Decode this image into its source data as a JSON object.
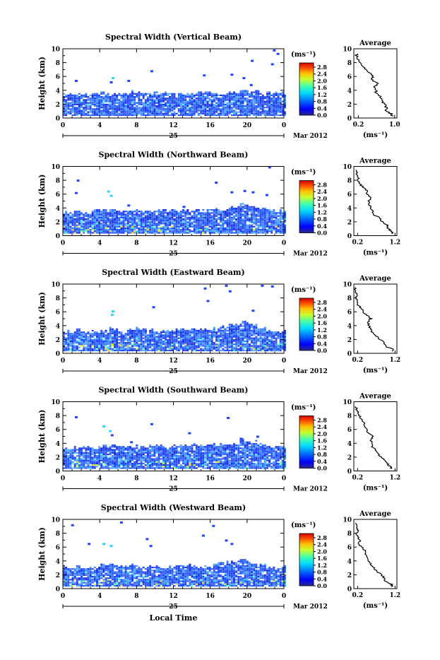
{
  "chart_data": [
    {
      "type": "heatmap",
      "title": "Spectral Width (Vertical Beam)",
      "ylabel": "Height (km)",
      "yticks": [
        "0",
        "2",
        "4",
        "6",
        "8",
        "10"
      ],
      "ylim": [
        0,
        10
      ],
      "xticks": [
        "0",
        "4",
        "8",
        "12",
        "16",
        "20",
        "0"
      ],
      "xlim": [
        0,
        24
      ],
      "day_label": "25",
      "date_label": "Mar 2012",
      "colorbar": {
        "unit": "(ms⁻¹)",
        "ticks": [
          "0.0",
          "0.4",
          "0.8",
          "1.2",
          "1.6",
          "2.0",
          "2.4",
          "2.8"
        ],
        "range": [
          0,
          2.8
        ]
      },
      "cloud": {
        "top_km": 3.5,
        "base_km": 0.3,
        "tops": [
          3.4,
          3.5,
          3.3,
          3.5,
          3.6,
          3.4,
          3.5,
          3.6,
          3.5,
          3.4,
          3.5,
          3.5,
          3.4,
          3.6,
          3.5,
          3.5,
          3.6,
          3.4,
          3.7,
          3.9,
          3.8,
          3.6,
          3.5,
          3.5
        ],
        "wide_near_ground": false,
        "seed": 11
      },
      "speckles": [
        [
          1.3,
          5.2
        ],
        [
          5.1,
          5.0
        ],
        [
          5.3,
          5.6
        ],
        [
          7.0,
          5.2
        ],
        [
          9.5,
          6.6
        ],
        [
          15.2,
          6.0
        ],
        [
          18.2,
          6.1
        ],
        [
          19.5,
          5.6
        ],
        [
          20.3,
          4.6
        ],
        [
          20.4,
          8.1
        ],
        [
          22.6,
          7.6
        ],
        [
          22.8,
          9.6
        ],
        [
          23.2,
          9.1
        ]
      ],
      "average": {
        "title": "Average",
        "xlabel": "(ms⁻¹)",
        "xticks": [
          "0.2",
          "1.0"
        ],
        "xlim": [
          0.1,
          1.05
        ],
        "heights": [
          0.3,
          0.6,
          1,
          1.5,
          2,
          2.5,
          3,
          3.5,
          4,
          4.5,
          5,
          5.5,
          6,
          6.5,
          7,
          7.5,
          8,
          8.5,
          9,
          9.3
        ],
        "values": [
          0.95,
          0.93,
          0.8,
          0.82,
          0.77,
          0.72,
          0.7,
          0.6,
          0.58,
          0.55,
          0.65,
          0.5,
          0.52,
          0.45,
          0.35,
          0.3,
          0.25,
          0.2,
          0.15,
          0.18
        ]
      }
    },
    {
      "type": "heatmap",
      "title": "Spectral Width (Northward Beam)",
      "ylabel": "Height (km)",
      "yticks": [
        "0",
        "2",
        "4",
        "6",
        "8",
        "10"
      ],
      "ylim": [
        0,
        10
      ],
      "xticks": [
        "0",
        "4",
        "8",
        "12",
        "16",
        "20",
        "0"
      ],
      "xlim": [
        0,
        24
      ],
      "day_label": "25",
      "date_label": "Mar 2012",
      "colorbar": {
        "unit": "(ms⁻¹)",
        "ticks": [
          "0.0",
          "0.4",
          "0.8",
          "1.2",
          "1.6",
          "2.0",
          "2.4",
          "2.8"
        ],
        "range": [
          0,
          2.8
        ]
      },
      "cloud": {
        "top_km": 3.5,
        "base_km": 0.3,
        "tops": [
          3.2,
          3.4,
          3.2,
          3.6,
          3.5,
          3.6,
          3.4,
          3.6,
          3.5,
          3.6,
          3.5,
          3.4,
          3.5,
          3.5,
          3.6,
          3.7,
          3.8,
          3.7,
          4.0,
          4.3,
          4.2,
          3.9,
          3.6,
          3.5
        ],
        "wide_near_ground": true,
        "seed": 23
      },
      "speckles": [
        [
          1.3,
          6.0
        ],
        [
          1.5,
          7.8
        ],
        [
          4.8,
          6.2
        ],
        [
          5.1,
          5.6
        ],
        [
          7.0,
          4.2
        ],
        [
          13.0,
          4.0
        ],
        [
          16.5,
          7.5
        ],
        [
          18.2,
          6.1
        ],
        [
          19.6,
          6.3
        ],
        [
          20.5,
          6.1
        ],
        [
          22.0,
          5.7
        ],
        [
          22.3,
          9.7
        ]
      ],
      "average": {
        "title": "Average",
        "xlabel": "(ms⁻¹)",
        "xticks": [
          "0.2",
          "1.2"
        ],
        "xlim": [
          0.1,
          1.25
        ],
        "heights": [
          0.3,
          0.6,
          1,
          1.5,
          2,
          2.5,
          3,
          3.5,
          4,
          4.5,
          5,
          5.5,
          6,
          6.5,
          7,
          7.5,
          8,
          8.5,
          9,
          9.5
        ],
        "values": [
          1.15,
          1.1,
          1.02,
          1.0,
          0.85,
          0.8,
          0.65,
          0.6,
          0.55,
          0.52,
          0.48,
          0.58,
          0.46,
          0.45,
          0.35,
          0.25,
          0.22,
          0.2,
          0.18,
          0.15
        ]
      }
    },
    {
      "type": "heatmap",
      "title": "Spectral Width (Eastward Beam)",
      "ylabel": "Height (km)",
      "yticks": [
        "0",
        "2",
        "4",
        "6",
        "8",
        "10"
      ],
      "ylim": [
        0,
        10
      ],
      "xticks": [
        "0",
        "4",
        "8",
        "12",
        "16",
        "20",
        "0"
      ],
      "xlim": [
        0,
        24
      ],
      "day_label": "25",
      "date_label": "Mar 2012",
      "colorbar": {
        "unit": "(ms⁻¹)",
        "ticks": [
          "0.0",
          "0.4",
          "0.8",
          "1.2",
          "1.6",
          "2.0",
          "2.4",
          "2.8"
        ],
        "range": [
          0,
          2.8
        ]
      },
      "cloud": {
        "top_km": 3.3,
        "base_km": 0.3,
        "tops": [
          3.0,
          3.2,
          3.0,
          3.1,
          3.3,
          3.4,
          3.2,
          3.5,
          3.3,
          3.2,
          3.1,
          3.2,
          3.3,
          3.4,
          3.3,
          3.2,
          3.5,
          3.7,
          4.0,
          4.4,
          4.0,
          3.6,
          3.2,
          3.0
        ],
        "wide_near_ground": true,
        "seed": 37
      },
      "speckles": [
        [
          5.2,
          5.4
        ],
        [
          5.3,
          5.9
        ],
        [
          9.7,
          6.5
        ],
        [
          15.3,
          9.2
        ],
        [
          15.6,
          7.4
        ],
        [
          17.6,
          9.6
        ],
        [
          18.0,
          8.8
        ],
        [
          20.5,
          6.0
        ],
        [
          21.5,
          9.6
        ],
        [
          22.6,
          9.5
        ]
      ],
      "average": {
        "title": "Average",
        "xlabel": "(ms⁻¹)",
        "xticks": [
          "0.2",
          "1.2"
        ],
        "xlim": [
          0.1,
          1.25
        ],
        "heights": [
          0.3,
          0.6,
          1,
          1.5,
          2,
          2.5,
          3,
          3.5,
          4,
          4.5,
          5,
          5.5,
          6,
          6.5,
          7,
          7.5,
          8,
          8.5,
          9,
          9.5
        ],
        "values": [
          1.1,
          1.15,
          0.95,
          0.9,
          0.8,
          0.7,
          0.6,
          0.55,
          0.5,
          0.48,
          0.55,
          0.45,
          0.35,
          0.3,
          0.2,
          0.18,
          0.15,
          0.2,
          0.15,
          0.12
        ]
      }
    },
    {
      "type": "heatmap",
      "title": "Spectral Width (Southward Beam)",
      "ylabel": "Height (km)",
      "yticks": [
        "0",
        "2",
        "4",
        "6",
        "8",
        "10"
      ],
      "ylim": [
        0,
        10
      ],
      "xticks": [
        "0",
        "4",
        "8",
        "12",
        "16",
        "20",
        "0"
      ],
      "xlim": [
        0,
        24
      ],
      "day_label": "25",
      "date_label": "Mar 2012",
      "colorbar": {
        "unit": "(ms⁻¹)",
        "ticks": [
          "0.0",
          "0.4",
          "0.8",
          "1.2",
          "1.6",
          "2.0",
          "2.4",
          "2.8"
        ],
        "range": [
          0,
          2.8
        ]
      },
      "cloud": {
        "top_km": 3.4,
        "base_km": 0.3,
        "tops": [
          3.2,
          3.3,
          3.4,
          3.3,
          3.5,
          3.6,
          3.4,
          3.5,
          3.4,
          3.5,
          3.4,
          3.5,
          3.6,
          3.5,
          3.6,
          3.5,
          3.7,
          3.8,
          4.0,
          4.3,
          4.1,
          3.8,
          3.5,
          3.4
        ],
        "wide_near_ground": true,
        "seed": 51
      },
      "speckles": [
        [
          1.3,
          7.6
        ],
        [
          4.3,
          6.3
        ],
        [
          5.0,
          5.6
        ],
        [
          5.2,
          5.0
        ],
        [
          7.3,
          4.0
        ],
        [
          9.5,
          6.6
        ],
        [
          13.6,
          5.3
        ],
        [
          17.8,
          7.5
        ],
        [
          19.2,
          4.5
        ],
        [
          21.0,
          4.8
        ]
      ],
      "average": {
        "title": "Average",
        "xlabel": "(ms⁻¹)",
        "xticks": [
          "0.2",
          "1.2"
        ],
        "xlim": [
          0.1,
          1.25
        ],
        "heights": [
          0.3,
          0.6,
          1,
          1.5,
          2,
          2.5,
          3,
          3.5,
          4,
          4.5,
          5,
          5.5,
          6,
          6.5,
          7,
          7.5,
          8,
          8.5,
          9,
          9.3
        ],
        "values": [
          1.12,
          1.08,
          1.0,
          0.92,
          0.85,
          0.72,
          0.68,
          0.6,
          0.58,
          0.55,
          0.62,
          0.48,
          0.45,
          0.4,
          0.38,
          0.3,
          0.25,
          0.2,
          0.18,
          0.15
        ]
      }
    },
    {
      "type": "heatmap",
      "title": "Spectral Width (Westward Beam)",
      "ylabel": "Height (km)",
      "yticks": [
        "0",
        "2",
        "4",
        "6",
        "8",
        "10"
      ],
      "ylim": [
        0,
        10
      ],
      "xticks": [
        "0",
        "4",
        "8",
        "12",
        "16",
        "20",
        "0"
      ],
      "xlim": [
        0,
        24
      ],
      "day_label": "25",
      "date_label": "Mar 2012",
      "xlabel": "Local Time",
      "colorbar": {
        "unit": "(ms⁻¹)",
        "ticks": [
          "0.0",
          "0.4",
          "0.8",
          "1.2",
          "1.6",
          "2.0",
          "2.4",
          "2.8"
        ],
        "range": [
          0,
          2.8
        ]
      },
      "cloud": {
        "top_km": 3.1,
        "base_km": 0.3,
        "tops": [
          3.0,
          3.1,
          2.9,
          3.1,
          3.3,
          3.4,
          3.2,
          3.3,
          3.1,
          3.2,
          3.0,
          3.1,
          3.2,
          3.3,
          3.2,
          3.1,
          3.4,
          3.6,
          3.7,
          3.9,
          3.6,
          3.3,
          3.1,
          3.0
        ],
        "wide_near_ground": true,
        "seed": 67
      },
      "speckles": [
        [
          0.9,
          9.0
        ],
        [
          2.7,
          6.3
        ],
        [
          4.3,
          6.3
        ],
        [
          5.1,
          6.0
        ],
        [
          6.2,
          9.4
        ],
        [
          9.0,
          7.0
        ],
        [
          9.4,
          6.0
        ],
        [
          15.1,
          7.5
        ],
        [
          16.2,
          8.9
        ],
        [
          17.6,
          6.8
        ],
        [
          18.2,
          6.3
        ]
      ],
      "average": {
        "title": "Average",
        "xlabel": "(ms⁻¹)",
        "xticks": [
          "0.2",
          "1.2"
        ],
        "xlim": [
          0.1,
          1.25
        ],
        "heights": [
          0.3,
          0.6,
          1,
          1.5,
          2,
          2.5,
          3,
          3.5,
          4,
          4.5,
          5,
          5.5,
          6,
          6.5,
          7,
          7.5,
          8,
          8.5,
          9,
          9.5
        ],
        "values": [
          1.12,
          1.1,
          0.95,
          0.9,
          0.85,
          0.7,
          0.65,
          0.55,
          0.5,
          0.45,
          0.42,
          0.4,
          0.3,
          0.22,
          0.28,
          0.2,
          0.18,
          0.2,
          0.16,
          0.15
        ]
      }
    }
  ]
}
